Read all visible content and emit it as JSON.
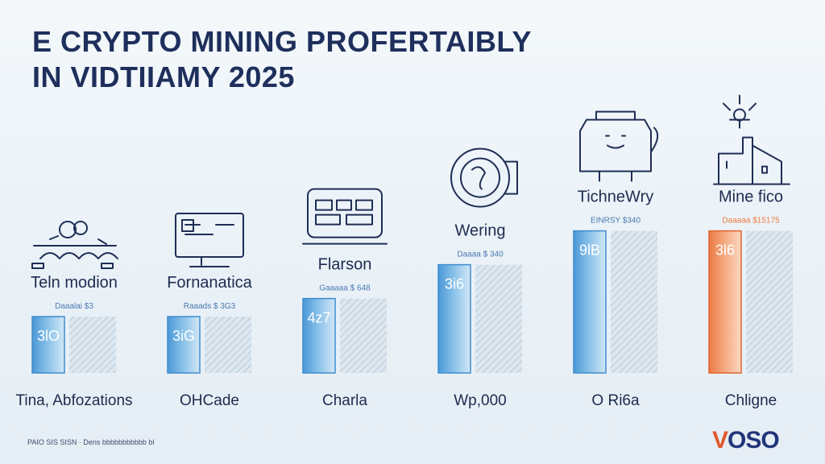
{
  "title": {
    "line1": "e CRYPTO MINING PROFERTAIBLY",
    "line2": "IN VIDTIIAMY 2025"
  },
  "footer": {
    "note": "PAIO SIS SISN · Dens bbbbbbbbbbb bl"
  },
  "logo": {
    "text_accent": "V",
    "text_rest": "OSO"
  },
  "colors": {
    "primary_bar": "#5aa6dc",
    "accent_bar": "#f08a55",
    "hatched_bar": "#c9d7e3",
    "text_dark": "#1d2b4f",
    "small_label": "#4a78b0",
    "small_label_accent": "#f07a3c"
  },
  "chart_data": {
    "type": "bar",
    "groups": [
      {
        "name": "Teln modion",
        "icon": "mining-rig-icon",
        "small_label": "Daaalai $3",
        "bar_label": "3lO",
        "category": "Tina, Abfozations",
        "value": 25,
        "reference": 25,
        "color": "primary"
      },
      {
        "name": "Fornanatica",
        "icon": "computer-monitor-icon",
        "small_label": "Raaads $ 3G3",
        "bar_label": "3iG",
        "category": "OHCade",
        "value": 25,
        "reference": 25,
        "color": "primary"
      },
      {
        "name": "Flarson",
        "icon": "server-screen-icon",
        "small_label": "Gaaaaa $ 648",
        "bar_label": "4z7",
        "category": "Charla",
        "value": 33,
        "reference": 33,
        "color": "primary"
      },
      {
        "name": "Wering",
        "icon": "coin-icon",
        "small_label": "Daaaa $ 340",
        "bar_label": "3i6",
        "category": "Wp,000",
        "value": 48,
        "reference": 48,
        "color": "primary"
      },
      {
        "name": "TichneWry",
        "icon": "machine-icon",
        "small_label": "EINRSY $340",
        "bar_label": "9lB",
        "category": "O Ri6a",
        "value": 63,
        "reference": 63,
        "color": "primary"
      },
      {
        "name": "Mine fico",
        "icon": "factory-icon",
        "small_label": "Daaaaa $15175",
        "bar_label": "3l6",
        "category": "Chligne",
        "value": 63,
        "reference": 63,
        "color": "accent"
      }
    ]
  }
}
